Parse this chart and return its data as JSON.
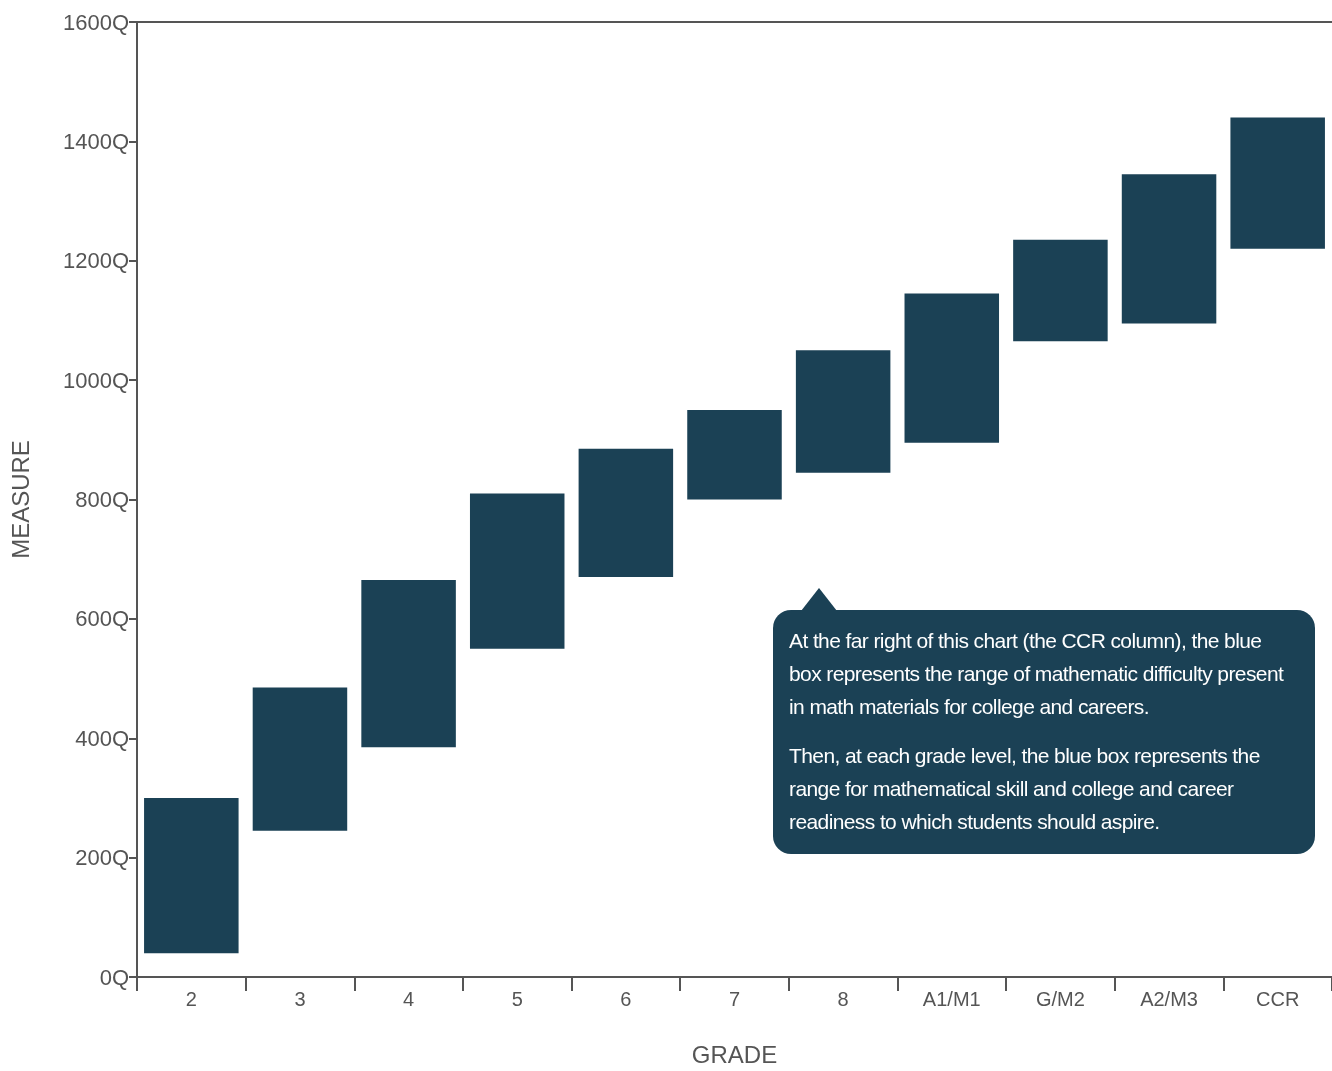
{
  "chart_data": {
    "type": "bar",
    "xlabel": "GRADE",
    "ylabel": "MEASURE",
    "categories": [
      "2",
      "3",
      "4",
      "5",
      "6",
      "7",
      "8",
      "A1/M1",
      "G/M2",
      "A2/M3",
      "CCR"
    ],
    "base": [
      40,
      245,
      385,
      550,
      670,
      800,
      845,
      895,
      1065,
      1095,
      1220
    ],
    "values": [
      260,
      240,
      280,
      260,
      215,
      150,
      205,
      250,
      170,
      250,
      220
    ],
    "color": "#1b4155",
    "ylim": [
      0,
      1600
    ],
    "yticks": [
      {
        "value": 0,
        "label": "0Q"
      },
      {
        "value": 200,
        "label": "200Q"
      },
      {
        "value": 400,
        "label": "400Q"
      },
      {
        "value": 600,
        "label": "600Q"
      },
      {
        "value": 800,
        "label": "800Q"
      },
      {
        "value": 1000,
        "label": "1000Q"
      },
      {
        "value": 1200,
        "label": "1200Q"
      },
      {
        "value": 1400,
        "label": "1400Q"
      },
      {
        "value": 1600,
        "label": "1600Q"
      }
    ],
    "grid": false,
    "annotations": [
      "At the far right of this chart (the CCR column), the blue box represents the range of mathematic difficulty present in math materials for college and careers.",
      "Then, at each grade level, the blue box represents the range for mathematical skill and college and career readiness to which students should aspire."
    ]
  }
}
